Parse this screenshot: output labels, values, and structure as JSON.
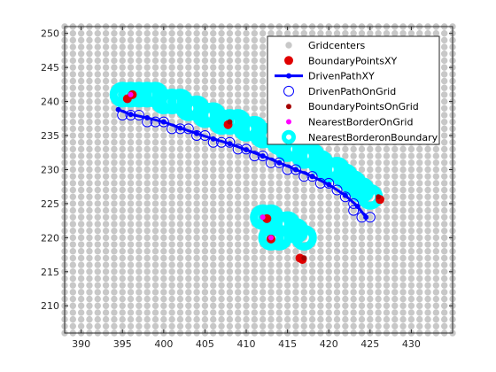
{
  "chart_data": {
    "type": "scatter",
    "title": "",
    "xlabel": "",
    "ylabel": "",
    "xlim": [
      388,
      435
    ],
    "ylim": [
      206,
      251
    ],
    "xticks": [
      390,
      395,
      400,
      405,
      410,
      415,
      420,
      425,
      430
    ],
    "yticks": [
      210,
      215,
      220,
      225,
      230,
      235,
      240,
      245,
      250
    ],
    "grid": false,
    "legend_position": "top-right",
    "colors": {
      "gridcenters": "#c8c8c8",
      "boundary_points": "#e00000",
      "driven_path": "#0000ff",
      "boundary_on_grid": "#a50000",
      "nearest_border_on_grid": "#ff00ff",
      "nearest_border_on_boundary": "#00ffff",
      "axis": "#262626"
    },
    "series": [
      {
        "name": "Gridcenters",
        "marker": "filled-circle",
        "grid_spacing": 1,
        "x_range": [
          388,
          435
        ],
        "y_range": [
          206,
          251
        ]
      },
      {
        "name": "BoundaryPointsXY",
        "marker": "filled-circle",
        "points": [
          [
            395.6,
            240.4
          ],
          [
            396.2,
            241.0
          ],
          [
            407.8,
            236.6
          ],
          [
            412.5,
            222.8
          ],
          [
            413.0,
            219.8
          ],
          [
            416.5,
            217.0
          ],
          [
            416.8,
            216.8
          ],
          [
            426.2,
            225.6
          ]
        ]
      },
      {
        "name": "DrivenPathXY",
        "marker": "line-with-dot",
        "points": [
          [
            394.5,
            238.8
          ],
          [
            396,
            238.1
          ],
          [
            398,
            237.6
          ],
          [
            400,
            237.0
          ],
          [
            402,
            236.1
          ],
          [
            404,
            235.3
          ],
          [
            406,
            234.5
          ],
          [
            408,
            233.8
          ],
          [
            410,
            232.9
          ],
          [
            412,
            232.0
          ],
          [
            414,
            231.0
          ],
          [
            416,
            230.0
          ],
          [
            418,
            229.0
          ],
          [
            420,
            227.8
          ],
          [
            422,
            226.2
          ],
          [
            423.5,
            224.6
          ],
          [
            424.5,
            223.0
          ]
        ]
      },
      {
        "name": "DrivenPathOnGrid",
        "marker": "open-circle",
        "points": [
          [
            395,
            238
          ],
          [
            396,
            238
          ],
          [
            397,
            238
          ],
          [
            398,
            237
          ],
          [
            399,
            237
          ],
          [
            400,
            237
          ],
          [
            401,
            236
          ],
          [
            402,
            236
          ],
          [
            403,
            236
          ],
          [
            404,
            235
          ],
          [
            405,
            235
          ],
          [
            406,
            234
          ],
          [
            407,
            234
          ],
          [
            408,
            234
          ],
          [
            409,
            233
          ],
          [
            410,
            233
          ],
          [
            411,
            232
          ],
          [
            412,
            232
          ],
          [
            413,
            231
          ],
          [
            414,
            231
          ],
          [
            415,
            230
          ],
          [
            416,
            230
          ],
          [
            417,
            229
          ],
          [
            418,
            229
          ],
          [
            419,
            228
          ],
          [
            420,
            228
          ],
          [
            421,
            227
          ],
          [
            422,
            226
          ],
          [
            423,
            225
          ],
          [
            423,
            224
          ],
          [
            424,
            223
          ],
          [
            425,
            223
          ]
        ]
      },
      {
        "name": "BoundaryPointsOnGrid",
        "marker": "filled-circle",
        "points": [
          [
            396,
            241
          ],
          [
            408,
            237
          ],
          [
            412,
            223
          ],
          [
            413,
            220
          ],
          [
            417,
            217
          ],
          [
            426,
            226
          ]
        ]
      },
      {
        "name": "NearestBorderOnGrid",
        "marker": "filled-circle",
        "points": [
          [
            396,
            241
          ],
          [
            412,
            223
          ],
          [
            413,
            220
          ]
        ]
      },
      {
        "name": "NearestBorderonBoundary",
        "marker": "thick-ring",
        "points": [
          [
            395,
            241
          ],
          [
            396,
            241
          ],
          [
            397,
            241
          ],
          [
            398,
            241
          ],
          [
            399,
            241
          ],
          [
            400,
            240
          ],
          [
            401,
            240
          ],
          [
            402,
            240
          ],
          [
            403,
            239
          ],
          [
            404,
            239
          ],
          [
            405,
            238
          ],
          [
            406,
            238
          ],
          [
            407,
            237
          ],
          [
            408,
            237
          ],
          [
            409,
            237
          ],
          [
            410,
            236
          ],
          [
            411,
            236
          ],
          [
            412,
            235
          ],
          [
            413,
            235
          ],
          [
            414,
            234
          ],
          [
            415,
            233
          ],
          [
            416,
            233
          ],
          [
            417,
            232
          ],
          [
            418,
            232
          ],
          [
            419,
            231
          ],
          [
            420,
            230
          ],
          [
            421,
            230
          ],
          [
            422,
            229
          ],
          [
            423,
            228
          ],
          [
            424,
            227
          ],
          [
            425,
            226
          ],
          [
            412,
            223
          ],
          [
            413,
            223
          ],
          [
            414,
            222
          ],
          [
            415,
            222
          ],
          [
            416,
            221
          ],
          [
            417,
            220
          ],
          [
            413,
            220
          ],
          [
            414,
            220
          ]
        ]
      }
    ]
  }
}
